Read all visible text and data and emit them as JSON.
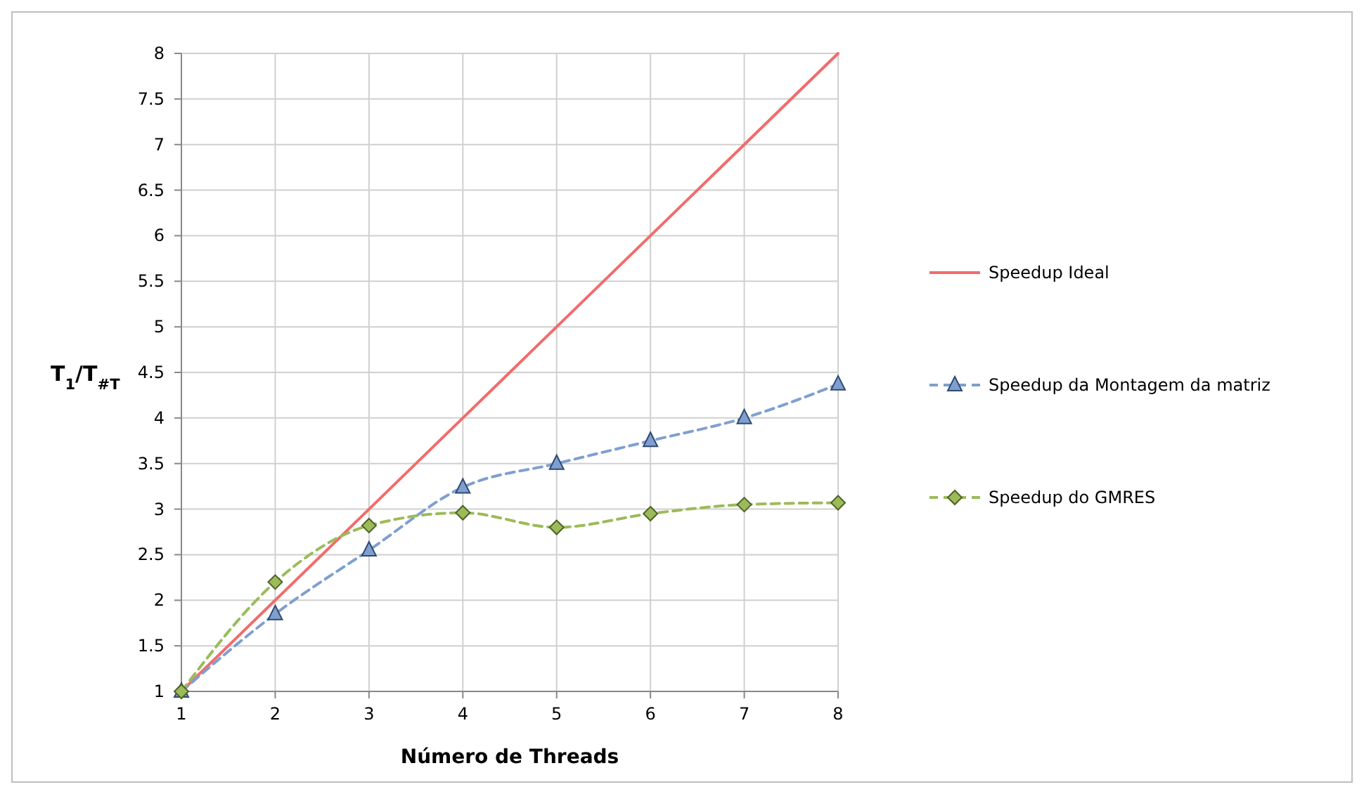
{
  "chart_data": {
    "type": "line",
    "xlabel": "Número de Threads",
    "ylabel": "T$_{1}$/T$_{#T}$",
    "xlim": [
      1,
      8
    ],
    "xticks": [
      1,
      2,
      3,
      4,
      5,
      6,
      7,
      8
    ],
    "ylim": [
      1,
      8
    ],
    "yticks": [
      1,
      1.5,
      2,
      2.5,
      3,
      3.5,
      4,
      4.5,
      5,
      5.5,
      6,
      6.5,
      7,
      7.5,
      8
    ],
    "grid": true,
    "legend": "right",
    "x": [
      1,
      2,
      3,
      4,
      5,
      6,
      7,
      8
    ],
    "series": [
      {
        "name": "Speedup Ideal",
        "color": "#f26b6b",
        "line_style": "solid",
        "marker": "none",
        "values": [
          1,
          2,
          3,
          4,
          5,
          6,
          7,
          8
        ]
      },
      {
        "name": "Speedup da Montagem da matriz",
        "color": "#7f9fcf",
        "line_style": "dashed",
        "marker": "triangle",
        "values": [
          1,
          1.85,
          2.55,
          3.24,
          3.5,
          3.75,
          4.0,
          4.37
        ]
      },
      {
        "name": "Speedup do GMRES",
        "color": "#9bbb59",
        "line_style": "dashed",
        "marker": "diamond",
        "values": [
          1,
          2.2,
          2.82,
          2.96,
          2.8,
          2.95,
          3.05,
          3.07
        ]
      }
    ]
  }
}
